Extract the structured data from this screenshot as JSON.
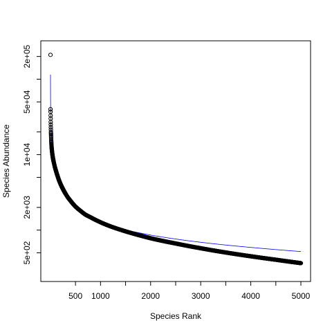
{
  "chart_data": {
    "type": "scatter",
    "title": "",
    "xlabel": "Species Rank",
    "ylabel": "Species Abundance",
    "xlim": [
      1,
      5000
    ],
    "ylim": [
      280,
      240000
    ],
    "ylog": true,
    "x_ticks": [
      500,
      1000,
      1500,
      2000,
      2500,
      3000,
      3500,
      4000,
      4500,
      5000
    ],
    "x_tick_labels": [
      "500",
      "1000",
      "",
      "2000",
      "",
      "3000",
      "",
      "4000",
      "",
      "5000"
    ],
    "y_ticks": [
      500,
      1000,
      2000,
      5000,
      10000,
      20000,
      50000,
      100000,
      200000
    ],
    "y_tick_labels": [
      "5e+02",
      "",
      "2e+03",
      "",
      "1e+04",
      "",
      "5e+04",
      "",
      "2e+05"
    ],
    "series": [
      {
        "name": "observed",
        "style": "open-circle",
        "color": "#000000",
        "points": [
          [
            1,
            210000
          ],
          [
            2,
            40000
          ],
          [
            3,
            37000
          ],
          [
            4,
            33000
          ],
          [
            5,
            30000
          ],
          [
            6,
            27000
          ],
          [
            7,
            25000
          ],
          [
            8,
            23000
          ],
          [
            9,
            21500
          ],
          [
            10,
            20000
          ],
          [
            12,
            18500
          ],
          [
            14,
            17000
          ],
          [
            16,
            15500
          ],
          [
            19,
            14000
          ],
          [
            22,
            13000
          ],
          [
            26,
            12000
          ],
          [
            30,
            11300
          ],
          [
            35,
            10500
          ],
          [
            40,
            9900
          ],
          [
            50,
            9000
          ],
          [
            60,
            8300
          ],
          [
            75,
            7500
          ],
          [
            90,
            6800
          ],
          [
            110,
            6100
          ],
          [
            135,
            5400
          ],
          [
            160,
            4800
          ],
          [
            200,
            4100
          ],
          [
            250,
            3500
          ],
          [
            300,
            3050
          ],
          [
            350,
            2700
          ],
          [
            400,
            2450
          ],
          [
            500,
            2050
          ],
          [
            600,
            1800
          ],
          [
            700,
            1600
          ],
          [
            800,
            1480
          ],
          [
            1000,
            1270
          ],
          [
            1200,
            1120
          ],
          [
            1400,
            1010
          ],
          [
            1600,
            920
          ],
          [
            1800,
            845
          ],
          [
            2000,
            780
          ],
          [
            2500,
            665
          ],
          [
            3000,
            575
          ],
          [
            3500,
            505
          ],
          [
            4000,
            450
          ],
          [
            4500,
            405
          ],
          [
            5000,
            365
          ]
        ]
      },
      {
        "name": "fitted",
        "style": "line",
        "color": "#0000ff",
        "points": [
          [
            1,
            115000
          ],
          [
            3,
            52000
          ],
          [
            6,
            35000
          ],
          [
            10,
            25000
          ],
          [
            20,
            15500
          ],
          [
            40,
            9800
          ],
          [
            80,
            6600
          ],
          [
            150,
            4700
          ],
          [
            250,
            3400
          ],
          [
            400,
            2400
          ],
          [
            600,
            1760
          ],
          [
            800,
            1450
          ],
          [
            1000,
            1270
          ],
          [
            1500,
            1010
          ],
          [
            2000,
            860
          ],
          [
            3000,
            690
          ],
          [
            4000,
            590
          ],
          [
            5000,
            520
          ]
        ]
      }
    ]
  }
}
